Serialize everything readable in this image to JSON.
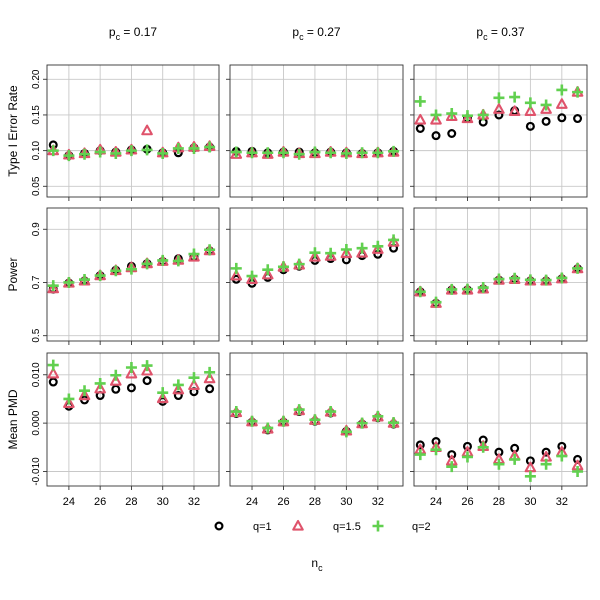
{
  "colors": {
    "q1": "#000000",
    "q15": "#df536b",
    "q2": "#61d04f"
  },
  "chart_data": {
    "type": "scatter",
    "x": [
      23,
      24,
      25,
      26,
      27,
      28,
      29,
      30,
      31,
      32,
      33
    ],
    "xlim": [
      22.6,
      33.6
    ],
    "xticks": [
      24,
      26,
      28,
      30,
      32
    ],
    "xlabel": "n",
    "xlabel_sub": "c",
    "facet_prefix": "p",
    "facet_prefix_sub": "c",
    "columns": [
      "= 0.17",
      "= 0.27",
      "= 0.37"
    ],
    "legend": [
      {
        "key": "q1",
        "label": "q=1"
      },
      {
        "key": "q15",
        "label": "q=1.5"
      },
      {
        "key": "q2",
        "label": "q=2"
      }
    ],
    "rows": [
      {
        "ylabel": "Type I Error Rate",
        "ylim": [
          0.035,
          0.22
        ],
        "yticks": [
          0.05,
          0.1,
          0.15,
          0.2
        ],
        "ytick_labels": [
          "0.05",
          "0.10",
          "0.15",
          "0.20"
        ],
        "panels": [
          {
            "q1": [
              0.108,
              0.093,
              0.096,
              0.1,
              0.098,
              0.101,
              0.102,
              0.097,
              0.097,
              0.104,
              0.105
            ],
            "q15": [
              0.1,
              0.094,
              0.096,
              0.101,
              0.098,
              0.101,
              0.128,
              0.097,
              0.104,
              0.105,
              0.106
            ],
            "q2": [
              0.1,
              0.093,
              0.095,
              0.098,
              0.096,
              0.1,
              0.101,
              0.096,
              0.103,
              0.103,
              0.105
            ]
          },
          {
            "q1": [
              0.099,
              0.099,
              0.097,
              0.098,
              0.098,
              0.097,
              0.098,
              0.097,
              0.096,
              0.097,
              0.099
            ],
            "q15": [
              0.095,
              0.097,
              0.095,
              0.098,
              0.096,
              0.096,
              0.098,
              0.097,
              0.096,
              0.097,
              0.098
            ],
            "q2": [
              0.098,
              0.097,
              0.097,
              0.097,
              0.095,
              0.098,
              0.097,
              0.096,
              0.097,
              0.097,
              0.099
            ]
          },
          {
            "q1": [
              0.131,
              0.121,
              0.124,
              0.145,
              0.14,
              0.15,
              0.156,
              0.134,
              0.141,
              0.146,
              0.145
            ],
            "q15": [
              0.143,
              0.143,
              0.148,
              0.145,
              0.15,
              0.158,
              0.155,
              0.155,
              0.158,
              0.165,
              0.182
            ],
            "q2": [
              0.169,
              0.15,
              0.152,
              0.149,
              0.15,
              0.174,
              0.175,
              0.167,
              0.164,
              0.185,
              0.182
            ]
          }
        ]
      },
      {
        "ylabel": "Power",
        "ylim": [
          0.48,
          0.98
        ],
        "yticks": [
          0.5,
          0.7,
          0.9
        ],
        "ytick_labels": [
          "0.5",
          "0.7",
          "0.9"
        ],
        "panels": [
          {
            "q1": [
              0.675,
              0.698,
              0.706,
              0.726,
              0.746,
              0.761,
              0.771,
              0.779,
              0.789,
              0.796,
              0.819
            ],
            "q15": [
              0.677,
              0.698,
              0.706,
              0.726,
              0.745,
              0.756,
              0.771,
              0.78,
              0.784,
              0.796,
              0.82
            ],
            "q2": [
              0.688,
              0.7,
              0.711,
              0.726,
              0.744,
              0.75,
              0.77,
              0.783,
              0.781,
              0.807,
              0.823
            ]
          },
          {
            "q1": [
              0.712,
              0.697,
              0.719,
              0.748,
              0.761,
              0.783,
              0.79,
              0.785,
              0.801,
              0.806,
              0.829
            ],
            "q15": [
              0.725,
              0.712,
              0.729,
              0.758,
              0.766,
              0.796,
              0.799,
              0.809,
              0.811,
              0.825,
              0.852
            ],
            "q2": [
              0.753,
              0.724,
              0.748,
              0.759,
              0.769,
              0.812,
              0.81,
              0.824,
              0.829,
              0.836,
              0.86
            ]
          },
          {
            "q1": [
              0.665,
              0.622,
              0.672,
              0.672,
              0.676,
              0.709,
              0.712,
              0.706,
              0.706,
              0.714,
              0.752
            ],
            "q15": [
              0.665,
              0.622,
              0.672,
              0.672,
              0.676,
              0.709,
              0.712,
              0.706,
              0.706,
              0.714,
              0.752
            ],
            "q2": [
              0.665,
              0.626,
              0.674,
              0.675,
              0.681,
              0.713,
              0.716,
              0.71,
              0.709,
              0.717,
              0.753
            ]
          }
        ]
      },
      {
        "ylabel": "Mean PMD",
        "ylim": [
          -0.013,
          0.0145
        ],
        "yticks": [
          -0.01,
          0.0,
          0.01
        ],
        "ytick_labels": [
          "-0.010",
          "0.000",
          "0.010"
        ],
        "panels": [
          {
            "q1": [
              0.0085,
              0.0035,
              0.0048,
              0.0057,
              0.007,
              0.0073,
              0.0088,
              0.0045,
              0.0057,
              0.0065,
              0.0071
            ],
            "q15": [
              0.0102,
              0.0041,
              0.0057,
              0.0071,
              0.0087,
              0.0102,
              0.0108,
              0.0051,
              0.0069,
              0.0078,
              0.0092
            ],
            "q2": [
              0.012,
              0.005,
              0.0067,
              0.0082,
              0.0099,
              0.0115,
              0.0119,
              0.0063,
              0.0079,
              0.0094,
              0.0105
            ]
          },
          {
            "q1": [
              0.002,
              0.0002,
              -0.0014,
              0.0002,
              0.0024,
              0.0004,
              0.0021,
              -0.0017,
              -0.0002,
              0.0011,
              -0.0002
            ],
            "q15": [
              0.0022,
              0.0003,
              -0.0012,
              0.0003,
              0.0026,
              0.0006,
              0.0023,
              -0.0016,
              -0.0001,
              0.0013,
              0.0
            ],
            "q2": [
              0.0024,
              0.0004,
              -0.001,
              0.0004,
              0.0028,
              0.0007,
              0.0024,
              -0.0018,
              0.0,
              0.0014,
              0.0001
            ]
          },
          {
            "q1": [
              -0.0045,
              -0.0038,
              -0.0065,
              -0.0048,
              -0.0035,
              -0.006,
              -0.0052,
              -0.0078,
              -0.006,
              -0.0048,
              -0.0075
            ],
            "q15": [
              -0.0055,
              -0.005,
              -0.0078,
              -0.006,
              -0.0048,
              -0.0075,
              -0.0068,
              -0.0092,
              -0.007,
              -0.006,
              -0.0088
            ],
            "q2": [
              -0.0065,
              -0.0055,
              -0.009,
              -0.007,
              -0.005,
              -0.0085,
              -0.0075,
              -0.011,
              -0.0085,
              -0.0068,
              -0.01
            ]
          }
        ]
      }
    ]
  }
}
